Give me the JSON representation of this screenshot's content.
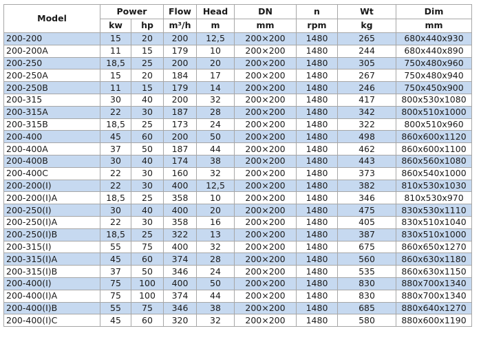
{
  "header": {
    "model": "Model",
    "groups": [
      "Power",
      "Flow",
      "Head",
      "DN",
      "n",
      "Wt",
      "Dim"
    ],
    "units": [
      "kw",
      "hp",
      "m³/h",
      "m",
      "mm",
      "rpm",
      "kg",
      "mm"
    ]
  },
  "shade_color": "#c6d9f0",
  "rows": [
    [
      "200-200",
      "15",
      "20",
      "200",
      "12,5",
      "200×200",
      "1480",
      "265",
      "680x440x930"
    ],
    [
      "200-200A",
      "11",
      "15",
      "179",
      "10",
      "200×200",
      "1480",
      "244",
      "680x440x890"
    ],
    [
      "200-250",
      "18,5",
      "25",
      "200",
      "20",
      "200×200",
      "1480",
      "305",
      "750x480x960"
    ],
    [
      "200-250A",
      "15",
      "20",
      "184",
      "17",
      "200×200",
      "1480",
      "267",
      "750x480x940"
    ],
    [
      "200-250B",
      "11",
      "15",
      "179",
      "14",
      "200×200",
      "1480",
      "246",
      "750x450x900"
    ],
    [
      "200-315",
      "30",
      "40",
      "200",
      "32",
      "200×200",
      "1480",
      "417",
      "800x530x1080"
    ],
    [
      "200-315A",
      "22",
      "30",
      "187",
      "28",
      "200×200",
      "1480",
      "342",
      "800x510x1000"
    ],
    [
      "200-315B",
      "18,5",
      "25",
      "173",
      "24",
      "200×200",
      "1480",
      "322",
      "800x510x960"
    ],
    [
      "200-400",
      "45",
      "60",
      "200",
      "50",
      "200×200",
      "1480",
      "498",
      "860x600x1120"
    ],
    [
      "200-400A",
      "37",
      "50",
      "187",
      "44",
      "200×200",
      "1480",
      "462",
      "860x600x1100"
    ],
    [
      "200-400B",
      "30",
      "40",
      "174",
      "38",
      "200×200",
      "1480",
      "443",
      "860x560x1080"
    ],
    [
      "200-400C",
      "22",
      "30",
      "160",
      "32",
      "200×200",
      "1480",
      "373",
      "860x540x1000"
    ],
    [
      "200-200(I)",
      "22",
      "30",
      "400",
      "12,5",
      "200×200",
      "1480",
      "382",
      "810x530x1030"
    ],
    [
      "200-200(I)A",
      "18,5",
      "25",
      "358",
      "10",
      "200×200",
      "1480",
      "346",
      "810x530x970"
    ],
    [
      "200-250(I)",
      "30",
      "40",
      "400",
      "20",
      "200×200",
      "1480",
      "475",
      "830x530x1110"
    ],
    [
      "200-250(I)A",
      "22",
      "30",
      "358",
      "16",
      "200×200",
      "1480",
      "405",
      "830x510x1040"
    ],
    [
      "200-250(I)B",
      "18,5",
      "25",
      "322",
      "13",
      "200×200",
      "1480",
      "387",
      "830x510x1000"
    ],
    [
      "200-315(I)",
      "55",
      "75",
      "400",
      "32",
      "200×200",
      "1480",
      "675",
      "860x650x1270"
    ],
    [
      "200-315(I)A",
      "45",
      "60",
      "374",
      "28",
      "200×200",
      "1480",
      "560",
      "860x630x1180"
    ],
    [
      "200-315(I)B",
      "37",
      "50",
      "346",
      "24",
      "200×200",
      "1480",
      "535",
      "860x630x1150"
    ],
    [
      "200-400(I)",
      "75",
      "100",
      "400",
      "50",
      "200×200",
      "1480",
      "830",
      "880x700x1340"
    ],
    [
      "200-400(I)A",
      "75",
      "100",
      "374",
      "44",
      "200×200",
      "1480",
      "830",
      "880x700x1340"
    ],
    [
      "200-400(I)B",
      "55",
      "75",
      "346",
      "38",
      "200×200",
      "1480",
      "685",
      "880x640x1270"
    ],
    [
      "200-400(I)C",
      "45",
      "60",
      "320",
      "32",
      "200×200",
      "1480",
      "580",
      "880x600x1190"
    ]
  ]
}
